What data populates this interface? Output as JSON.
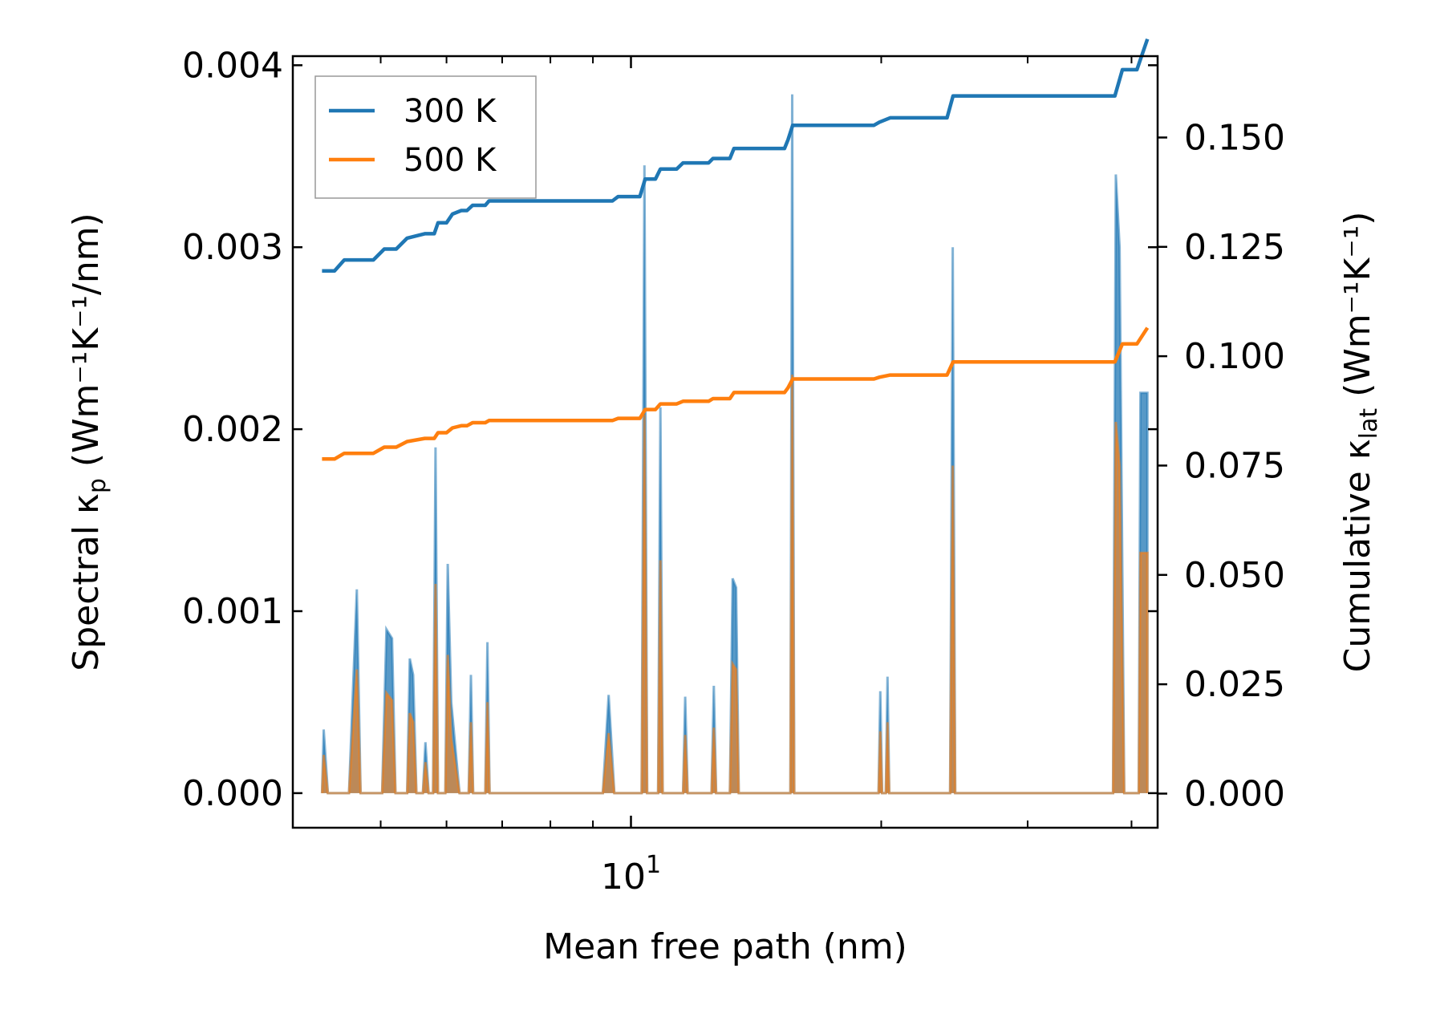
{
  "chart_data": {
    "type": "line",
    "title": "",
    "xlabel": "Mean free path (nm)",
    "xscale": "log",
    "xlim": [
      3.92,
      43.0
    ],
    "ylabel_left": {
      "main": "Spectral κ",
      "sub": "p",
      "units": " (Wm⁻¹K⁻¹/nm)"
    },
    "ylabel_right": {
      "main": "Cumulative κ",
      "sub": "lat",
      "units": " (Wm⁻¹K⁻¹)"
    },
    "ylim_left": [
      -0.00019,
      0.00405
    ],
    "ylim_right": [
      -0.0078,
      0.1686
    ],
    "x_ticks": [
      {
        "value": 10,
        "base": "10",
        "exp": "1"
      }
    ],
    "y_ticks_left": [
      "0.000",
      "0.001",
      "0.002",
      "0.003",
      "0.004"
    ],
    "y_ticks_right": [
      "0.000",
      "0.025",
      "0.050",
      "0.075",
      "0.100",
      "0.125",
      "0.150"
    ],
    "legend": {
      "position": "top-left",
      "entries": [
        "300 K",
        "500 K"
      ]
    },
    "colors": {
      "blue": "#1f77b4",
      "orange": "#ff7f0e",
      "fill_overlap": "#c8966a"
    },
    "spectral": [
      {
        "name": "300 K",
        "points": [
          [
            4.25,
            0
          ],
          [
            4.27,
            0.00035
          ],
          [
            4.32,
            0
          ],
          [
            4.58,
            0
          ],
          [
            4.68,
            0.00112
          ],
          [
            4.73,
            0
          ],
          [
            5.02,
            0
          ],
          [
            5.08,
            0.0009
          ],
          [
            5.16,
            0.00085
          ],
          [
            5.21,
            0
          ],
          [
            5.38,
            0
          ],
          [
            5.42,
            0.00074
          ],
          [
            5.47,
            0.00065
          ],
          [
            5.52,
            0
          ],
          [
            5.62,
            0
          ],
          [
            5.66,
            0.00028
          ],
          [
            5.71,
            0
          ],
          [
            5.78,
            0
          ],
          [
            5.82,
            0.0019
          ],
          [
            5.86,
            0
          ],
          [
            5.98,
            0
          ],
          [
            6.02,
            0.00126
          ],
          [
            6.08,
            0.0005
          ],
          [
            6.22,
            0
          ],
          [
            6.38,
            0
          ],
          [
            6.42,
            0.00065
          ],
          [
            6.46,
            0
          ],
          [
            6.68,
            0
          ],
          [
            6.72,
            0.00083
          ],
          [
            6.76,
            0
          ],
          [
            9.25,
            0
          ],
          [
            9.4,
            0.00054
          ],
          [
            9.55,
            0
          ],
          [
            10.3,
            0
          ],
          [
            10.38,
            0.00345
          ],
          [
            10.46,
            0
          ],
          [
            10.78,
            0
          ],
          [
            10.85,
            0.00212
          ],
          [
            10.92,
            0
          ],
          [
            11.55,
            0
          ],
          [
            11.62,
            0.00053
          ],
          [
            11.7,
            0
          ],
          [
            12.5,
            0
          ],
          [
            12.58,
            0.00059
          ],
          [
            12.66,
            0
          ],
          [
            13.15,
            0
          ],
          [
            13.25,
            0.00118
          ],
          [
            13.38,
            0.00113
          ],
          [
            13.48,
            0
          ],
          [
            15.5,
            0
          ],
          [
            15.55,
            0
          ],
          [
            15.63,
            0.00384
          ],
          [
            15.72,
            0
          ],
          [
            19.85,
            0
          ],
          [
            19.95,
            0.00056
          ],
          [
            20.05,
            0
          ],
          [
            20.25,
            0
          ],
          [
            20.35,
            0.00064
          ],
          [
            20.45,
            0
          ],
          [
            24.2,
            0
          ],
          [
            24.38,
            0.003
          ],
          [
            24.55,
            0
          ],
          [
            38.0,
            0
          ],
          [
            38.3,
            0.0034
          ],
          [
            38.7,
            0.003
          ],
          [
            39.2,
            0
          ],
          [
            39.6,
            0
          ],
          [
            40.8,
            0
          ],
          [
            41.0,
            0.0022
          ],
          [
            41.8,
            0.0022
          ],
          [
            41.8,
            0
          ]
        ]
      },
      {
        "name": "500 K",
        "points": [
          [
            4.25,
            0
          ],
          [
            4.27,
            0.00021
          ],
          [
            4.32,
            0
          ],
          [
            4.58,
            0
          ],
          [
            4.68,
            0.00068
          ],
          [
            4.73,
            0
          ],
          [
            5.02,
            0
          ],
          [
            5.08,
            0.00055
          ],
          [
            5.16,
            0.00051
          ],
          [
            5.21,
            0
          ],
          [
            5.38,
            0
          ],
          [
            5.42,
            0.00044
          ],
          [
            5.47,
            0.00039
          ],
          [
            5.52,
            0
          ],
          [
            5.62,
            0
          ],
          [
            5.66,
            0.00017
          ],
          [
            5.71,
            0
          ],
          [
            5.78,
            0
          ],
          [
            5.82,
            0.00115
          ],
          [
            5.86,
            0
          ],
          [
            5.98,
            0
          ],
          [
            6.02,
            0.00076
          ],
          [
            6.08,
            0.0003
          ],
          [
            6.22,
            0
          ],
          [
            6.38,
            0
          ],
          [
            6.42,
            0.00039
          ],
          [
            6.46,
            0
          ],
          [
            6.68,
            0
          ],
          [
            6.72,
            0.0005
          ],
          [
            6.76,
            0
          ],
          [
            9.25,
            0
          ],
          [
            9.4,
            0.00033
          ],
          [
            9.55,
            0
          ],
          [
            10.3,
            0
          ],
          [
            10.38,
            0.00208
          ],
          [
            10.46,
            0
          ],
          [
            10.78,
            0
          ],
          [
            10.85,
            0.00128
          ],
          [
            10.92,
            0
          ],
          [
            11.55,
            0
          ],
          [
            11.62,
            0.00032
          ],
          [
            11.7,
            0
          ],
          [
            12.5,
            0
          ],
          [
            12.58,
            0.00036
          ],
          [
            12.66,
            0
          ],
          [
            13.15,
            0
          ],
          [
            13.25,
            0.00071
          ],
          [
            13.38,
            0.00068
          ],
          [
            13.48,
            0
          ],
          [
            15.5,
            0
          ],
          [
            15.55,
            0
          ],
          [
            15.63,
            0.0023
          ],
          [
            15.72,
            0
          ],
          [
            19.85,
            0
          ],
          [
            19.95,
            0.00034
          ],
          [
            20.05,
            0
          ],
          [
            20.25,
            0
          ],
          [
            20.35,
            0.00039
          ],
          [
            20.45,
            0
          ],
          [
            24.2,
            0
          ],
          [
            24.38,
            0.0018
          ],
          [
            24.55,
            0
          ],
          [
            38.0,
            0
          ],
          [
            38.3,
            0.00204
          ],
          [
            38.7,
            0.0018
          ],
          [
            39.2,
            0
          ],
          [
            39.6,
            0
          ],
          [
            40.8,
            0
          ],
          [
            41.0,
            0.00132
          ],
          [
            41.8,
            0.00132
          ],
          [
            41.8,
            0
          ]
        ]
      }
    ],
    "cumulative": [
      {
        "name": "300 K",
        "points": [
          [
            4.25,
            0.1195
          ],
          [
            4.4,
            0.1195
          ],
          [
            4.52,
            0.122
          ],
          [
            4.9,
            0.122
          ],
          [
            5.05,
            0.1245
          ],
          [
            5.22,
            0.1245
          ],
          [
            5.38,
            0.127
          ],
          [
            5.65,
            0.128
          ],
          [
            5.8,
            0.128
          ],
          [
            5.86,
            0.1305
          ],
          [
            6.0,
            0.1305
          ],
          [
            6.1,
            0.1325
          ],
          [
            6.25,
            0.1333
          ],
          [
            6.35,
            0.1333
          ],
          [
            6.45,
            0.1345
          ],
          [
            6.68,
            0.1345
          ],
          [
            6.75,
            0.1355
          ],
          [
            9.5,
            0.1355
          ],
          [
            9.65,
            0.1365
          ],
          [
            10.25,
            0.1365
          ],
          [
            10.4,
            0.1405
          ],
          [
            10.7,
            0.1405
          ],
          [
            10.85,
            0.1428
          ],
          [
            11.35,
            0.1428
          ],
          [
            11.55,
            0.1442
          ],
          [
            12.4,
            0.1442
          ],
          [
            12.55,
            0.1452
          ],
          [
            13.15,
            0.1452
          ],
          [
            13.3,
            0.1475
          ],
          [
            15.3,
            0.1475
          ],
          [
            15.45,
            0.1495
          ],
          [
            15.65,
            0.1528
          ],
          [
            19.6,
            0.1528
          ],
          [
            19.9,
            0.1535
          ],
          [
            20.5,
            0.1545
          ],
          [
            24.0,
            0.1545
          ],
          [
            24.4,
            0.1595
          ],
          [
            38.2,
            0.1595
          ],
          [
            39.0,
            0.1655
          ],
          [
            40.6,
            0.1655
          ],
          [
            41.8,
            0.1725
          ]
        ]
      },
      {
        "name": "500 K",
        "points": [
          [
            4.25,
            0.0765
          ],
          [
            4.4,
            0.0765
          ],
          [
            4.52,
            0.0778
          ],
          [
            4.9,
            0.0778
          ],
          [
            5.05,
            0.0792
          ],
          [
            5.22,
            0.0792
          ],
          [
            5.38,
            0.0805
          ],
          [
            5.65,
            0.0812
          ],
          [
            5.8,
            0.0812
          ],
          [
            5.86,
            0.0825
          ],
          [
            6.0,
            0.0825
          ],
          [
            6.1,
            0.0836
          ],
          [
            6.25,
            0.0841
          ],
          [
            6.35,
            0.0841
          ],
          [
            6.45,
            0.0848
          ],
          [
            6.68,
            0.0848
          ],
          [
            6.75,
            0.0853
          ],
          [
            9.5,
            0.0853
          ],
          [
            9.65,
            0.0858
          ],
          [
            10.25,
            0.0858
          ],
          [
            10.4,
            0.0878
          ],
          [
            10.7,
            0.0878
          ],
          [
            10.85,
            0.0891
          ],
          [
            11.35,
            0.0891
          ],
          [
            11.55,
            0.0897
          ],
          [
            12.4,
            0.0897
          ],
          [
            12.55,
            0.0903
          ],
          [
            13.15,
            0.0903
          ],
          [
            13.3,
            0.0917
          ],
          [
            15.3,
            0.0917
          ],
          [
            15.45,
            0.0928
          ],
          [
            15.65,
            0.0948
          ],
          [
            19.6,
            0.0948
          ],
          [
            19.9,
            0.0952
          ],
          [
            20.5,
            0.0957
          ],
          [
            24.0,
            0.0957
          ],
          [
            24.4,
            0.0987
          ],
          [
            38.2,
            0.0987
          ],
          [
            39.0,
            0.1028
          ],
          [
            40.6,
            0.1028
          ],
          [
            41.8,
            0.1065
          ]
        ]
      }
    ]
  }
}
